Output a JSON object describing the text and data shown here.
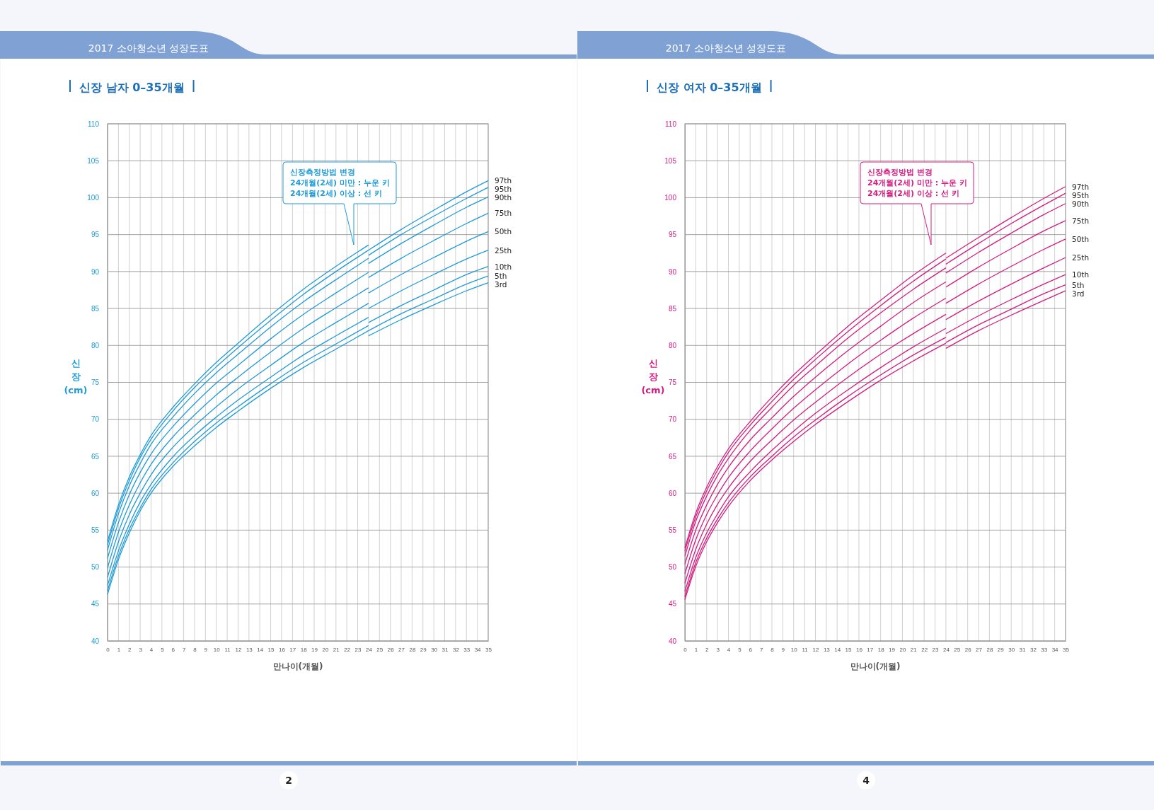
{
  "chart_data": [
    {
      "type": "line",
      "title": "신장 남자 0–35개월",
      "xlabel": "만나이(개월)",
      "ylabel": "신\n장\n(cm)",
      "annotations": [
        "2017 소아청소년 성장도표",
        "신장측정방법 변경\n24개월(2세) 미만 : 누운 키\n24개월(2세) 이상 : 선 키",
        "2"
      ],
      "xlim": [
        0,
        35
      ],
      "xticks": [
        0,
        1,
        2,
        3,
        4,
        5,
        6,
        7,
        8,
        9,
        10,
        11,
        12,
        13,
        14,
        15,
        16,
        17,
        18,
        19,
        20,
        21,
        22,
        23,
        24,
        25,
        26,
        27,
        28,
        29,
        30,
        31,
        32,
        33,
        34,
        35
      ],
      "ylim": [
        40,
        110
      ],
      "yticks": [
        40,
        45,
        50,
        55,
        60,
        65,
        70,
        75,
        80,
        85,
        90,
        95,
        100,
        105,
        110
      ],
      "grid": true,
      "legend": false,
      "series": [
        {
          "color": "#1f9bd7",
          "x": [
            0,
            1,
            2,
            3,
            4,
            6,
            8,
            10,
            12,
            15,
            18,
            21,
            24
          ],
          "values": [
            53.5,
            58.4,
            62.2,
            65.2,
            67.8,
            71.6,
            74.8,
            77.7,
            80.3,
            84.1,
            87.6,
            90.7,
            93.6
          ]
        },
        {
          "name": "97th",
          "color": "#1f9bd7",
          "x": [
            24,
            27,
            30,
            33,
            35
          ],
          "values": [
            92.9,
            95.7,
            98.3,
            100.8,
            102.3
          ]
        },
        {
          "color": "#1f9bd7",
          "x": [
            0,
            1,
            2,
            3,
            4,
            6,
            8,
            10,
            12,
            15,
            18,
            21,
            24
          ],
          "values": [
            53.0,
            57.9,
            61.7,
            64.8,
            67.3,
            71.1,
            74.3,
            77.1,
            79.7,
            83.4,
            86.9,
            90.0,
            92.9
          ]
        },
        {
          "name": "95th",
          "color": "#1f9bd7",
          "x": [
            24,
            27,
            30,
            33,
            35
          ],
          "values": [
            92.2,
            95.0,
            97.5,
            99.9,
            101.4
          ]
        },
        {
          "color": "#1f9bd7",
          "x": [
            0,
            1,
            2,
            3,
            4,
            6,
            8,
            10,
            12,
            15,
            18,
            21,
            24
          ],
          "values": [
            52.3,
            57.2,
            61.0,
            64.0,
            66.6,
            70.3,
            73.5,
            76.3,
            78.8,
            82.5,
            85.9,
            88.9,
            91.8
          ]
        },
        {
          "name": "90th",
          "color": "#1f9bd7",
          "x": [
            24,
            27,
            30,
            33,
            35
          ],
          "values": [
            91.1,
            93.8,
            96.3,
            98.7,
            100.1
          ]
        },
        {
          "color": "#1f9bd7",
          "x": [
            0,
            1,
            2,
            3,
            4,
            6,
            8,
            10,
            12,
            15,
            18,
            21,
            24
          ],
          "values": [
            51.2,
            56.0,
            59.8,
            62.8,
            65.3,
            69.0,
            72.1,
            74.9,
            77.3,
            80.9,
            84.2,
            87.1,
            89.9
          ]
        },
        {
          "name": "75th",
          "color": "#1f9bd7",
          "x": [
            24,
            27,
            30,
            33,
            35
          ],
          "values": [
            89.2,
            91.8,
            94.2,
            96.5,
            97.9
          ]
        },
        {
          "color": "#1f9bd7",
          "x": [
            0,
            1,
            2,
            3,
            4,
            6,
            8,
            10,
            12,
            15,
            18,
            21,
            24
          ],
          "values": [
            49.9,
            54.7,
            58.4,
            61.4,
            63.9,
            67.6,
            70.6,
            73.3,
            75.7,
            79.1,
            82.3,
            85.1,
            87.8
          ]
        },
        {
          "name": "50th",
          "color": "#1f9bd7",
          "x": [
            24,
            27,
            30,
            33,
            35
          ],
          "values": [
            87.1,
            89.6,
            91.9,
            94.1,
            95.4
          ]
        },
        {
          "color": "#1f9bd7",
          "x": [
            0,
            1,
            2,
            3,
            4,
            6,
            8,
            10,
            12,
            15,
            18,
            21,
            24
          ],
          "values": [
            48.6,
            53.4,
            57.1,
            60.0,
            62.5,
            66.2,
            69.1,
            71.7,
            74.1,
            77.3,
            80.4,
            83.1,
            85.7
          ]
        },
        {
          "name": "25th",
          "color": "#1f9bd7",
          "x": [
            24,
            27,
            30,
            33,
            35
          ],
          "values": [
            85.0,
            87.4,
            89.6,
            91.7,
            92.9
          ]
        },
        {
          "color": "#1f9bd7",
          "x": [
            0,
            1,
            2,
            3,
            4,
            6,
            8,
            10,
            12,
            15,
            18,
            21,
            24
          ],
          "values": [
            47.5,
            52.2,
            55.8,
            58.8,
            61.2,
            64.9,
            67.8,
            70.3,
            72.6,
            75.7,
            78.7,
            81.3,
            83.8
          ]
        },
        {
          "name": "10th",
          "color": "#1f9bd7",
          "x": [
            24,
            27,
            30,
            33,
            35
          ],
          "values": [
            83.1,
            85.4,
            87.5,
            89.6,
            90.7
          ]
        },
        {
          "color": "#1f9bd7",
          "x": [
            0,
            1,
            2,
            3,
            4,
            6,
            8,
            10,
            12,
            15,
            18,
            21,
            24
          ],
          "values": [
            46.8,
            51.5,
            55.1,
            58.0,
            60.5,
            64.1,
            67.0,
            69.5,
            71.7,
            74.8,
            77.7,
            80.2,
            82.7
          ]
        },
        {
          "name": "5th",
          "color": "#1f9bd7",
          "x": [
            24,
            27,
            30,
            33,
            35
          ],
          "values": [
            82.0,
            84.3,
            86.3,
            88.3,
            89.4
          ]
        },
        {
          "color": "#1f9bd7",
          "x": [
            0,
            1,
            2,
            3,
            4,
            6,
            8,
            10,
            12,
            15,
            18,
            21,
            24
          ],
          "values": [
            46.3,
            51.0,
            54.6,
            57.6,
            60.0,
            63.6,
            66.4,
            68.9,
            71.1,
            74.2,
            77.0,
            79.5,
            82.0
          ]
        },
        {
          "name": "3rd",
          "color": "#1f9bd7",
          "x": [
            24,
            27,
            30,
            33,
            35
          ],
          "values": [
            81.3,
            83.5,
            85.5,
            87.4,
            88.5
          ]
        }
      ]
    },
    {
      "type": "line",
      "title": "신장 여자 0–35개월",
      "xlabel": "만나이(개월)",
      "ylabel": "신\n장\n(cm)",
      "annotations": [
        "2017 소아청소년 성장도표",
        "신장측정방법 변경\n24개월(2세) 미만 : 누운 키\n24개월(2세) 이상 : 선 키",
        "4"
      ],
      "xlim": [
        0,
        35
      ],
      "xticks": [
        0,
        1,
        2,
        3,
        4,
        5,
        6,
        7,
        8,
        9,
        10,
        11,
        12,
        13,
        14,
        15,
        16,
        17,
        18,
        19,
        20,
        21,
        22,
        23,
        24,
        25,
        26,
        27,
        28,
        29,
        30,
        31,
        32,
        33,
        34,
        35
      ],
      "ylim": [
        40,
        110
      ],
      "yticks": [
        40,
        45,
        50,
        55,
        60,
        65,
        70,
        75,
        80,
        85,
        90,
        95,
        100,
        105,
        110
      ],
      "grid": true,
      "legend": false,
      "series": [
        {
          "color": "#d41c80",
          "x": [
            0,
            1,
            2,
            3,
            4,
            6,
            8,
            10,
            12,
            15,
            18,
            21,
            24
          ],
          "values": [
            52.6,
            57.3,
            60.8,
            63.6,
            66.0,
            69.7,
            73.0,
            76.0,
            78.7,
            82.6,
            86.1,
            89.5,
            92.5
          ]
        },
        {
          "name": "97th",
          "color": "#d41c80",
          "x": [
            24,
            27,
            30,
            33,
            35
          ],
          "values": [
            91.8,
            94.6,
            97.3,
            99.9,
            101.5
          ]
        },
        {
          "color": "#d41c80",
          "x": [
            0,
            1,
            2,
            3,
            4,
            6,
            8,
            10,
            12,
            15,
            18,
            21,
            24
          ],
          "values": [
            52.2,
            56.8,
            60.3,
            63.1,
            65.5,
            69.2,
            72.4,
            75.4,
            78.1,
            81.9,
            85.4,
            88.7,
            91.7
          ]
        },
        {
          "name": "95th",
          "color": "#d41c80",
          "x": [
            24,
            27,
            30,
            33,
            35
          ],
          "values": [
            91.0,
            93.8,
            96.5,
            99.0,
            100.6
          ]
        },
        {
          "color": "#d41c80",
          "x": [
            0,
            1,
            2,
            3,
            4,
            6,
            8,
            10,
            12,
            15,
            18,
            21,
            24
          ],
          "values": [
            51.5,
            56.2,
            59.6,
            62.4,
            64.7,
            68.5,
            71.6,
            74.6,
            77.2,
            81.0,
            84.4,
            87.6,
            90.5
          ]
        },
        {
          "name": "90th",
          "color": "#d41c80",
          "x": [
            24,
            27,
            30,
            33,
            35
          ],
          "values": [
            89.8,
            92.6,
            95.2,
            97.7,
            99.2
          ]
        },
        {
          "color": "#d41c80",
          "x": [
            0,
            1,
            2,
            3,
            4,
            6,
            8,
            10,
            12,
            15,
            18,
            21,
            24
          ],
          "values": [
            50.4,
            55.0,
            58.4,
            61.2,
            63.5,
            67.2,
            70.2,
            73.1,
            75.7,
            79.3,
            82.6,
            85.8,
            88.6
          ]
        },
        {
          "name": "75th",
          "color": "#d41c80",
          "x": [
            24,
            27,
            30,
            33,
            35
          ],
          "values": [
            87.9,
            90.6,
            93.1,
            95.5,
            96.9
          ]
        },
        {
          "color": "#d41c80",
          "x": [
            0,
            1,
            2,
            3,
            4,
            6,
            8,
            10,
            12,
            15,
            18,
            21,
            24
          ],
          "values": [
            49.1,
            53.7,
            57.1,
            59.8,
            62.1,
            65.7,
            68.7,
            71.5,
            74.0,
            77.5,
            80.7,
            83.7,
            86.4
          ]
        },
        {
          "name": "50th",
          "color": "#d41c80",
          "x": [
            24,
            27,
            30,
            33,
            35
          ],
          "values": [
            85.7,
            88.3,
            90.7,
            93.0,
            94.4
          ]
        },
        {
          "color": "#d41c80",
          "x": [
            0,
            1,
            2,
            3,
            4,
            6,
            8,
            10,
            12,
            15,
            18,
            21,
            24
          ],
          "values": [
            47.8,
            52.4,
            55.8,
            58.5,
            60.7,
            64.3,
            67.2,
            69.9,
            72.3,
            75.7,
            78.8,
            81.6,
            84.2
          ]
        },
        {
          "name": "25th",
          "color": "#d41c80",
          "x": [
            24,
            27,
            30,
            33,
            35
          ],
          "values": [
            83.5,
            86.0,
            88.3,
            90.5,
            91.9
          ]
        },
        {
          "color": "#d41c80",
          "x": [
            0,
            1,
            2,
            3,
            4,
            6,
            8,
            10,
            12,
            15,
            18,
            21,
            24
          ],
          "values": [
            46.7,
            51.3,
            54.6,
            57.2,
            59.5,
            62.9,
            65.8,
            68.4,
            70.8,
            74.0,
            77.0,
            79.8,
            82.3
          ]
        },
        {
          "name": "10th",
          "color": "#d41c80",
          "x": [
            24,
            27,
            30,
            33,
            35
          ],
          "values": [
            81.6,
            84.0,
            86.2,
            88.3,
            89.6
          ]
        },
        {
          "color": "#d41c80",
          "x": [
            0,
            1,
            2,
            3,
            4,
            6,
            8,
            10,
            12,
            15,
            18,
            21,
            24
          ],
          "values": [
            46.0,
            50.6,
            53.9,
            56.5,
            58.7,
            62.2,
            65.0,
            67.6,
            69.9,
            73.1,
            76.0,
            78.7,
            81.1
          ]
        },
        {
          "name": "5th",
          "color": "#d41c80",
          "x": [
            24,
            27,
            30,
            33,
            35
          ],
          "values": [
            80.4,
            82.8,
            84.9,
            87.0,
            88.2
          ]
        },
        {
          "color": "#d41c80",
          "x": [
            0,
            1,
            2,
            3,
            4,
            6,
            8,
            10,
            12,
            15,
            18,
            21,
            24
          ],
          "values": [
            45.6,
            50.1,
            53.4,
            56.0,
            58.2,
            61.7,
            64.5,
            67.0,
            69.3,
            72.4,
            75.3,
            77.9,
            80.3
          ]
        },
        {
          "name": "3rd",
          "color": "#d41c80",
          "x": [
            24,
            27,
            30,
            33,
            35
          ],
          "values": [
            79.6,
            82.0,
            84.1,
            86.1,
            87.4
          ]
        }
      ]
    }
  ]
}
